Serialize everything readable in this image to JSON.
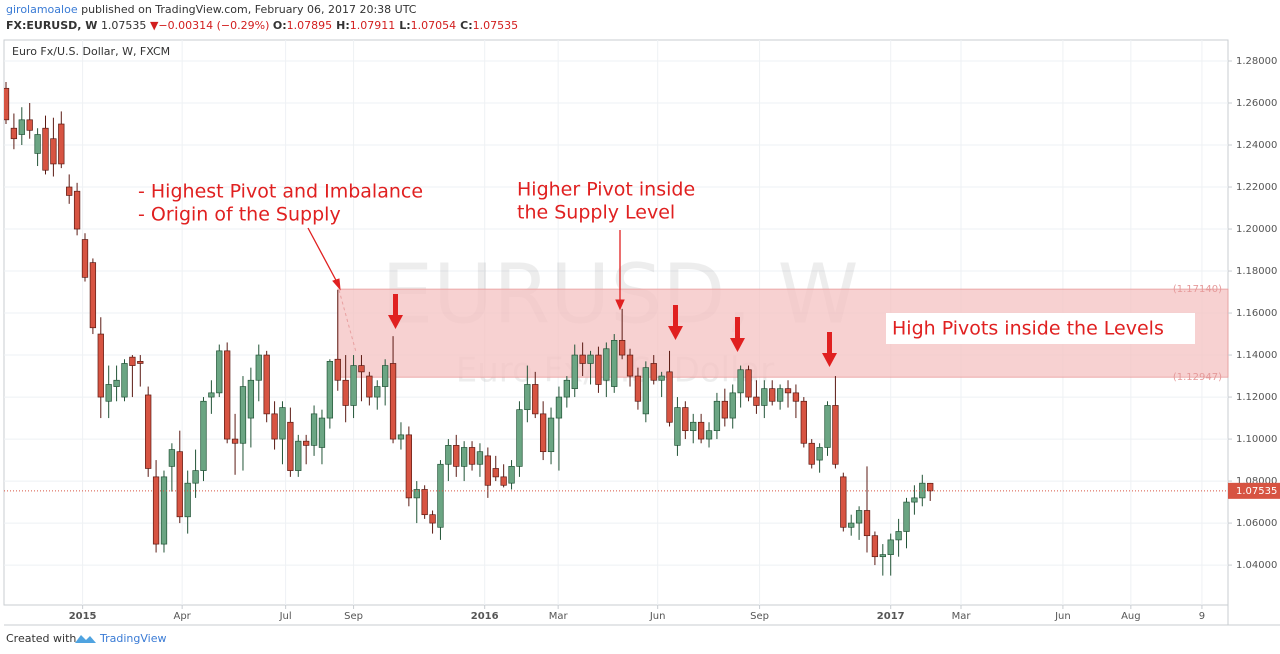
{
  "header": {
    "author": "girolamoaloe",
    "published": "published on TradingView.com, February 06, 2017 20:38 UTC",
    "symbol": "FX:EURUSD, W",
    "last": 1.07535,
    "direction": "▼",
    "change": {
      "value": -0.00314,
      "label": "−0.00314"
    },
    "change_pct": {
      "value": -0.29,
      "label": "(−0.29%)"
    },
    "ohlc": [
      {
        "label": "O:",
        "value": 1.07895
      },
      {
        "label": "H:",
        "value": 1.07911
      },
      {
        "label": "L:",
        "value": 1.07054
      },
      {
        "label": "C:",
        "value": 1.07535
      }
    ]
  },
  "chart_data": {
    "type": "candlestick",
    "title": "Euro Fx/U.S. Dollar, W, FXCM",
    "watermark": "EURUSD, W",
    "watermark_sub": "Euro Fx/U.S. Dollar",
    "up_color": "#6ba583",
    "down_color": "#d75442",
    "open": [
      1.267,
      1.248,
      1.245,
      1.252,
      1.236,
      1.248,
      1.243,
      1.25,
      1.22,
      1.218,
      1.195,
      1.184,
      1.15,
      1.118,
      1.125,
      1.12,
      1.139,
      1.137,
      1.121,
      1.082,
      1.05,
      1.087,
      1.094,
      1.063,
      1.079,
      1.085,
      1.12,
      1.122,
      1.142,
      1.1,
      1.098,
      1.11,
      1.128,
      1.14,
      1.112,
      1.1,
      1.108,
      1.085,
      1.099,
      1.097,
      1.096,
      1.11,
      1.138,
      1.128,
      1.116,
      1.135,
      1.13,
      1.12,
      1.125,
      1.136,
      1.1,
      1.102,
      1.072,
      1.076,
      1.064,
      1.058,
      1.088,
      1.097,
      1.087,
      1.096,
      1.088,
      1.092,
      1.086,
      1.082,
      1.079,
      1.087,
      1.114,
      1.126,
      1.112,
      1.094,
      1.11,
      1.12,
      1.124,
      1.14,
      1.136,
      1.14,
      1.128,
      1.125,
      1.147,
      1.14,
      1.13,
      1.112,
      1.136,
      1.128,
      1.132,
      1.097,
      1.115,
      1.104,
      1.108,
      1.1,
      1.104,
      1.118,
      1.11,
      1.122,
      1.133,
      1.12,
      1.116,
      1.124,
      1.118,
      1.124,
      1.122,
      1.118,
      1.098,
      1.09,
      1.096,
      1.116,
      1.082,
      1.058,
      1.06,
      1.066,
      1.054,
      1.044,
      1.045,
      1.052,
      1.056,
      1.07,
      1.072,
      1.07895
    ],
    "high": [
      1.27,
      1.255,
      1.258,
      1.26,
      1.248,
      1.254,
      1.253,
      1.256,
      1.226,
      1.222,
      1.198,
      1.186,
      1.158,
      1.135,
      1.135,
      1.138,
      1.14,
      1.14,
      1.125,
      1.09,
      1.085,
      1.098,
      1.104,
      1.085,
      1.095,
      1.12,
      1.128,
      1.145,
      1.146,
      1.112,
      1.13,
      1.134,
      1.145,
      1.142,
      1.118,
      1.118,
      1.115,
      1.102,
      1.102,
      1.116,
      1.114,
      1.138,
      1.171,
      1.14,
      1.14,
      1.14,
      1.132,
      1.128,
      1.138,
      1.149,
      1.108,
      1.106,
      1.08,
      1.078,
      1.066,
      1.09,
      1.1,
      1.102,
      1.099,
      1.099,
      1.098,
      1.096,
      1.092,
      1.088,
      1.09,
      1.118,
      1.135,
      1.132,
      1.118,
      1.115,
      1.125,
      1.13,
      1.145,
      1.146,
      1.142,
      1.144,
      1.146,
      1.15,
      1.162,
      1.143,
      1.134,
      1.137,
      1.14,
      1.132,
      1.142,
      1.12,
      1.118,
      1.112,
      1.112,
      1.108,
      1.122,
      1.124,
      1.126,
      1.135,
      1.135,
      1.128,
      1.128,
      1.128,
      1.126,
      1.128,
      1.126,
      1.12,
      1.1,
      1.098,
      1.118,
      1.13,
      1.084,
      1.064,
      1.068,
      1.087,
      1.056,
      1.05,
      1.055,
      1.062,
      1.072,
      1.078,
      1.083,
      1.07911
    ],
    "low": [
      1.25,
      1.238,
      1.24,
      1.243,
      1.23,
      1.226,
      1.225,
      1.229,
      1.212,
      1.197,
      1.175,
      1.15,
      1.11,
      1.11,
      1.118,
      1.118,
      1.12,
      1.125,
      1.082,
      1.046,
      1.046,
      1.075,
      1.06,
      1.055,
      1.072,
      1.08,
      1.112,
      1.12,
      1.098,
      1.083,
      1.085,
      1.096,
      1.118,
      1.108,
      1.095,
      1.088,
      1.082,
      1.082,
      1.088,
      1.092,
      1.088,
      1.105,
      1.123,
      1.108,
      1.11,
      1.118,
      1.116,
      1.114,
      1.116,
      1.098,
      1.095,
      1.068,
      1.06,
      1.062,
      1.055,
      1.052,
      1.08,
      1.082,
      1.08,
      1.085,
      1.082,
      1.072,
      1.08,
      1.077,
      1.076,
      1.082,
      1.108,
      1.11,
      1.09,
      1.088,
      1.085,
      1.115,
      1.12,
      1.13,
      1.126,
      1.122,
      1.12,
      1.122,
      1.138,
      1.125,
      1.114,
      1.108,
      1.126,
      1.12,
      1.106,
      1.092,
      1.1,
      1.098,
      1.098,
      1.096,
      1.1,
      1.106,
      1.105,
      1.115,
      1.118,
      1.112,
      1.11,
      1.116,
      1.114,
      1.115,
      1.11,
      1.096,
      1.086,
      1.084,
      1.092,
      1.086,
      1.056,
      1.054,
      1.052,
      1.046,
      1.04,
      1.035,
      1.035,
      1.044,
      1.048,
      1.064,
      1.068,
      1.07054
    ],
    "close": [
      1.252,
      1.243,
      1.252,
      1.247,
      1.245,
      1.228,
      1.231,
      1.231,
      1.216,
      1.2,
      1.177,
      1.153,
      1.12,
      1.126,
      1.128,
      1.136,
      1.135,
      1.136,
      1.086,
      1.05,
      1.082,
      1.095,
      1.063,
      1.079,
      1.085,
      1.118,
      1.122,
      1.142,
      1.1,
      1.098,
      1.125,
      1.128,
      1.14,
      1.112,
      1.1,
      1.115,
      1.085,
      1.099,
      1.097,
      1.112,
      1.11,
      1.137,
      1.128,
      1.116,
      1.135,
      1.132,
      1.12,
      1.125,
      1.135,
      1.1,
      1.102,
      1.072,
      1.076,
      1.064,
      1.06,
      1.088,
      1.097,
      1.087,
      1.096,
      1.088,
      1.094,
      1.078,
      1.082,
      1.078,
      1.087,
      1.114,
      1.126,
      1.112,
      1.094,
      1.11,
      1.12,
      1.128,
      1.14,
      1.136,
      1.14,
      1.126,
      1.143,
      1.147,
      1.14,
      1.13,
      1.118,
      1.134,
      1.128,
      1.13,
      1.108,
      1.115,
      1.104,
      1.108,
      1.1,
      1.104,
      1.118,
      1.11,
      1.122,
      1.133,
      1.12,
      1.116,
      1.124,
      1.118,
      1.124,
      1.122,
      1.118,
      1.098,
      1.088,
      1.096,
      1.116,
      1.088,
      1.058,
      1.06,
      1.066,
      1.054,
      1.044,
      1.045,
      1.052,
      1.056,
      1.07,
      1.072,
      1.079,
      1.07535
    ],
    "xlim": [
      0,
      154.7
    ],
    "ylim": [
      1.021,
      1.29
    ],
    "xticks": [
      {
        "value": 9.7,
        "label": "2015"
      },
      {
        "value": 22.3,
        "label": "Apr"
      },
      {
        "value": 35.4,
        "label": "Jul"
      },
      {
        "value": 44,
        "label": "Sep"
      },
      {
        "value": 60.6,
        "label": "2016"
      },
      {
        "value": 69.9,
        "label": "Mar"
      },
      {
        "value": 82.5,
        "label": "Jun"
      },
      {
        "value": 95.4,
        "label": "Sep"
      },
      {
        "value": 112,
        "label": "2017"
      },
      {
        "value": 120.9,
        "label": "Mar"
      },
      {
        "value": 133.8,
        "label": "Jun"
      },
      {
        "value": 142.4,
        "label": "Aug"
      },
      {
        "value": 151.4,
        "label": "9"
      }
    ],
    "yticks": [
      {
        "value": 1.04,
        "label": "1.04000"
      },
      {
        "value": 1.06,
        "label": "1.06000"
      },
      {
        "value": 1.08,
        "label": "1.08000"
      },
      {
        "value": 1.1,
        "label": "1.10000"
      },
      {
        "value": 1.12,
        "label": "1.12000"
      },
      {
        "value": 1.14,
        "label": "1.14000"
      },
      {
        "value": 1.16,
        "label": "1.16000"
      },
      {
        "value": 1.18,
        "label": "1.18000"
      },
      {
        "value": 1.2,
        "label": "1.20000"
      },
      {
        "value": 1.22,
        "label": "1.22000"
      },
      {
        "value": 1.24,
        "label": "1.24000"
      },
      {
        "value": 1.26,
        "label": "1.26000"
      },
      {
        "value": 1.28,
        "label": "1.28000"
      }
    ],
    "grid": true,
    "zone": {
      "start": 42,
      "top": {
        "value": 1.1714,
        "label": "(1.17140)"
      },
      "bottom": {
        "value": 1.12947,
        "label": "(1.12947)"
      },
      "color": "#f4c2c2"
    },
    "price_line": {
      "value": 1.07535,
      "label": "1.07535",
      "color": "#d75442"
    },
    "annotations": [
      [
        "- Highest Pivot and Imbalance",
        "- Origin of the Supply"
      ],
      [
        "Higher Pivot inside",
        "the Supply Level"
      ],
      [
        "High Pivots inside the Levels"
      ]
    ]
  },
  "footer": {
    "created": "Created with",
    "brand": "TradingView"
  }
}
